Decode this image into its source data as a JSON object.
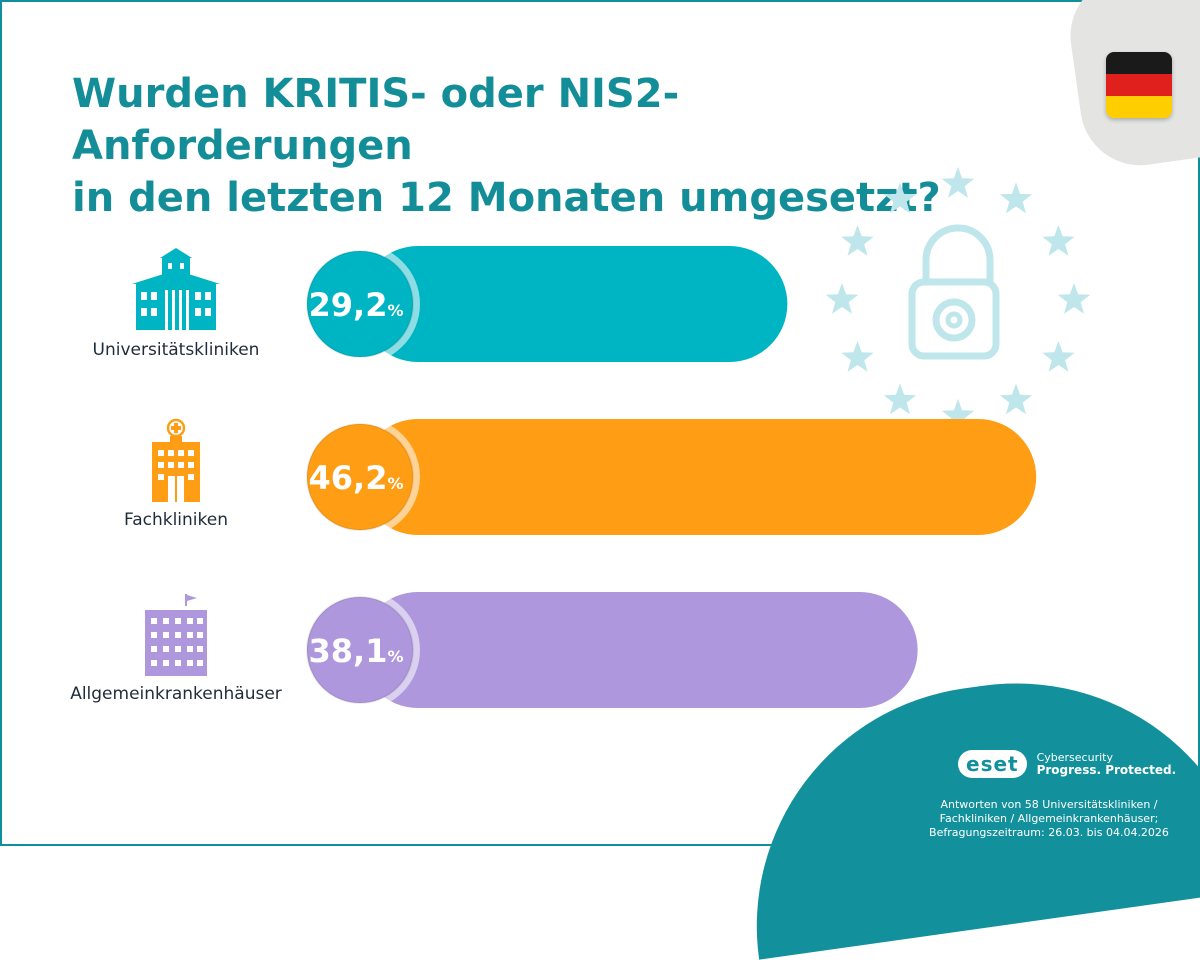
{
  "title_line1": "Wurden KRITIS- oder NIS2-Anforderungen",
  "title_line2": "in den letzten 12 Monaten umgesetzt?",
  "flag": "germany-flag",
  "decor": "eu-stars-lock-icon",
  "chart_data": {
    "type": "bar",
    "orientation": "horizontal",
    "unit": "%",
    "categories": [
      "Universitätskliniken",
      "Fachkliniken",
      "Allgemeinkrankenhäuser"
    ],
    "values": [
      29.2,
      46.2,
      38.1
    ],
    "value_labels": [
      "29,2",
      "46,2",
      "38,1"
    ],
    "colors": [
      "#00b5c3",
      "#ff9e14",
      "#ae97dc"
    ],
    "icons": [
      "university-hospital-icon",
      "specialist-clinic-icon",
      "general-hospital-icon"
    ]
  },
  "brand": {
    "logo": "eset",
    "tagline_1": "Cybersecurity",
    "tagline_2": "Progress. Protected.",
    "color": "#12919c"
  },
  "footnote": {
    "line1": "Antworten von 58 Universitätskliniken /",
    "line2": "Fachkliniken / Allgemeinkrankenhäuser;",
    "line3": "Befragungszeitraum: 26.03. bis 04.04.2026"
  }
}
